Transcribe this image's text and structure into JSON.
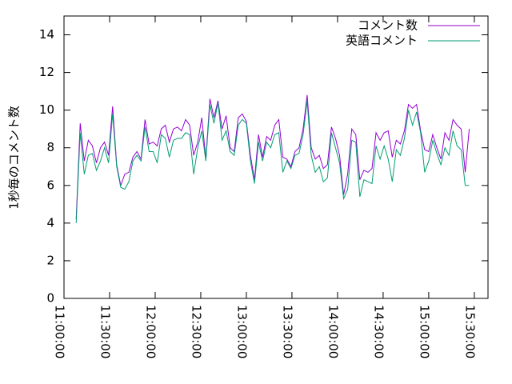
{
  "chart_data": {
    "type": "line",
    "ylabel": "1秒毎のコメント数",
    "x": [
      "11:08:00",
      "11:10:40",
      "11:13:20",
      "11:16:00",
      "11:18:40",
      "11:21:20",
      "11:24:00",
      "11:26:40",
      "11:29:20",
      "11:32:00",
      "11:34:40",
      "11:37:20",
      "11:40:00",
      "11:42:40",
      "11:45:20",
      "11:48:00",
      "11:50:40",
      "11:53:20",
      "11:56:00",
      "11:58:40",
      "12:01:20",
      "12:04:00",
      "12:06:40",
      "12:09:20",
      "12:12:00",
      "12:14:40",
      "12:17:20",
      "12:20:00",
      "12:22:40",
      "12:25:20",
      "12:28:00",
      "12:30:40",
      "12:33:20",
      "12:36:00",
      "12:38:40",
      "12:41:20",
      "12:44:00",
      "12:46:40",
      "12:49:20",
      "12:52:00",
      "12:54:40",
      "12:57:20",
      "13:00:00",
      "13:02:40",
      "13:05:20",
      "13:08:00",
      "13:10:40",
      "13:13:20",
      "13:16:00",
      "13:18:40",
      "13:21:20",
      "13:24:00",
      "13:26:40",
      "13:29:20",
      "13:32:00",
      "13:34:40",
      "13:37:20",
      "13:40:00",
      "13:42:40",
      "13:45:20",
      "13:48:00",
      "13:50:40",
      "13:53:20",
      "13:56:00",
      "13:58:40",
      "14:01:20",
      "14:04:00",
      "14:06:40",
      "14:09:20",
      "14:12:00",
      "14:14:40",
      "14:17:20",
      "14:20:00",
      "14:22:40",
      "14:25:20",
      "14:28:00",
      "14:30:40",
      "14:33:20",
      "14:36:00",
      "14:38:40",
      "14:41:20",
      "14:44:00",
      "14:46:40",
      "14:49:20",
      "14:52:00",
      "14:54:40",
      "14:57:20",
      "15:00:00",
      "15:02:40",
      "15:05:20",
      "15:08:00",
      "15:10:40",
      "15:13:20",
      "15:16:00",
      "15:18:40",
      "15:21:20",
      "15:24:00",
      "15:26:40"
    ],
    "series": [
      {
        "name": "コメント数",
        "color": "#9400d3",
        "values": [
          4.2,
          9.3,
          7.3,
          8.4,
          8.1,
          7.2,
          8.0,
          8.3,
          7.6,
          10.2,
          7.1,
          6.0,
          6.6,
          6.7,
          7.5,
          7.8,
          7.4,
          9.5,
          8.2,
          8.3,
          8.1,
          9.0,
          9.2,
          8.3,
          9.0,
          9.1,
          8.9,
          9.5,
          9.2,
          7.6,
          8.3,
          9.6,
          7.4,
          10.6,
          9.6,
          10.5,
          9.0,
          9.7,
          8.0,
          7.8,
          9.6,
          9.8,
          9.4,
          7.6,
          6.3,
          8.7,
          7.5,
          8.6,
          8.4,
          9.2,
          9.5,
          7.5,
          7.4,
          7.0,
          7.8,
          8.0,
          9.0,
          10.8,
          8.0,
          7.4,
          7.6,
          6.9,
          7.1,
          9.1,
          8.5,
          7.6,
          5.5,
          6.6,
          9.0,
          8.7,
          6.3,
          6.8,
          6.7,
          6.9,
          8.8,
          8.4,
          8.8,
          8.9,
          7.5,
          8.4,
          8.2,
          8.9,
          10.3,
          10.1,
          10.3,
          8.9,
          7.9,
          7.8,
          8.7,
          8.0,
          7.4,
          8.8,
          8.4,
          9.5,
          9.2,
          9.0,
          6.7,
          9.0
        ]
      },
      {
        "name": "英語コメント",
        "color": "#009e73",
        "values": [
          4.0,
          8.8,
          6.6,
          7.6,
          7.7,
          6.8,
          7.3,
          8.0,
          7.2,
          9.8,
          7.0,
          5.9,
          5.8,
          6.2,
          7.3,
          7.6,
          7.3,
          9.1,
          7.8,
          7.8,
          7.2,
          8.7,
          8.5,
          7.5,
          8.4,
          8.5,
          8.5,
          8.8,
          8.7,
          6.6,
          8.0,
          8.9,
          7.3,
          10.3,
          9.3,
          10.4,
          8.4,
          8.9,
          7.8,
          7.6,
          9.2,
          9.5,
          9.3,
          7.3,
          6.1,
          8.3,
          7.3,
          8.3,
          8.0,
          8.7,
          8.8,
          6.7,
          7.3,
          6.9,
          7.6,
          7.7,
          8.7,
          10.5,
          7.6,
          6.7,
          7.0,
          6.2,
          6.4,
          8.8,
          8.0,
          7.2,
          5.3,
          5.8,
          8.4,
          8.3,
          5.4,
          6.3,
          6.2,
          6.1,
          8.1,
          7.4,
          8.1,
          7.4,
          6.2,
          7.9,
          7.6,
          8.5,
          10.0,
          9.2,
          9.9,
          8.8,
          6.7,
          7.3,
          8.4,
          7.7,
          7.1,
          8.0,
          7.6,
          8.9,
          8.1,
          7.9,
          6.0,
          6.0
        ]
      }
    ],
    "xlim": [
      "11:00:00",
      "15:39:00"
    ],
    "xticks": [
      "11:00:00",
      "11:30:00",
      "12:00:00",
      "12:30:00",
      "13:00:00",
      "13:30:00",
      "14:00:00",
      "14:30:00",
      "15:00:00",
      "15:30:00"
    ],
    "ylim": [
      0,
      15
    ],
    "yticks": [
      0,
      2,
      4,
      6,
      8,
      10,
      12,
      14
    ],
    "legend": "top-right"
  }
}
